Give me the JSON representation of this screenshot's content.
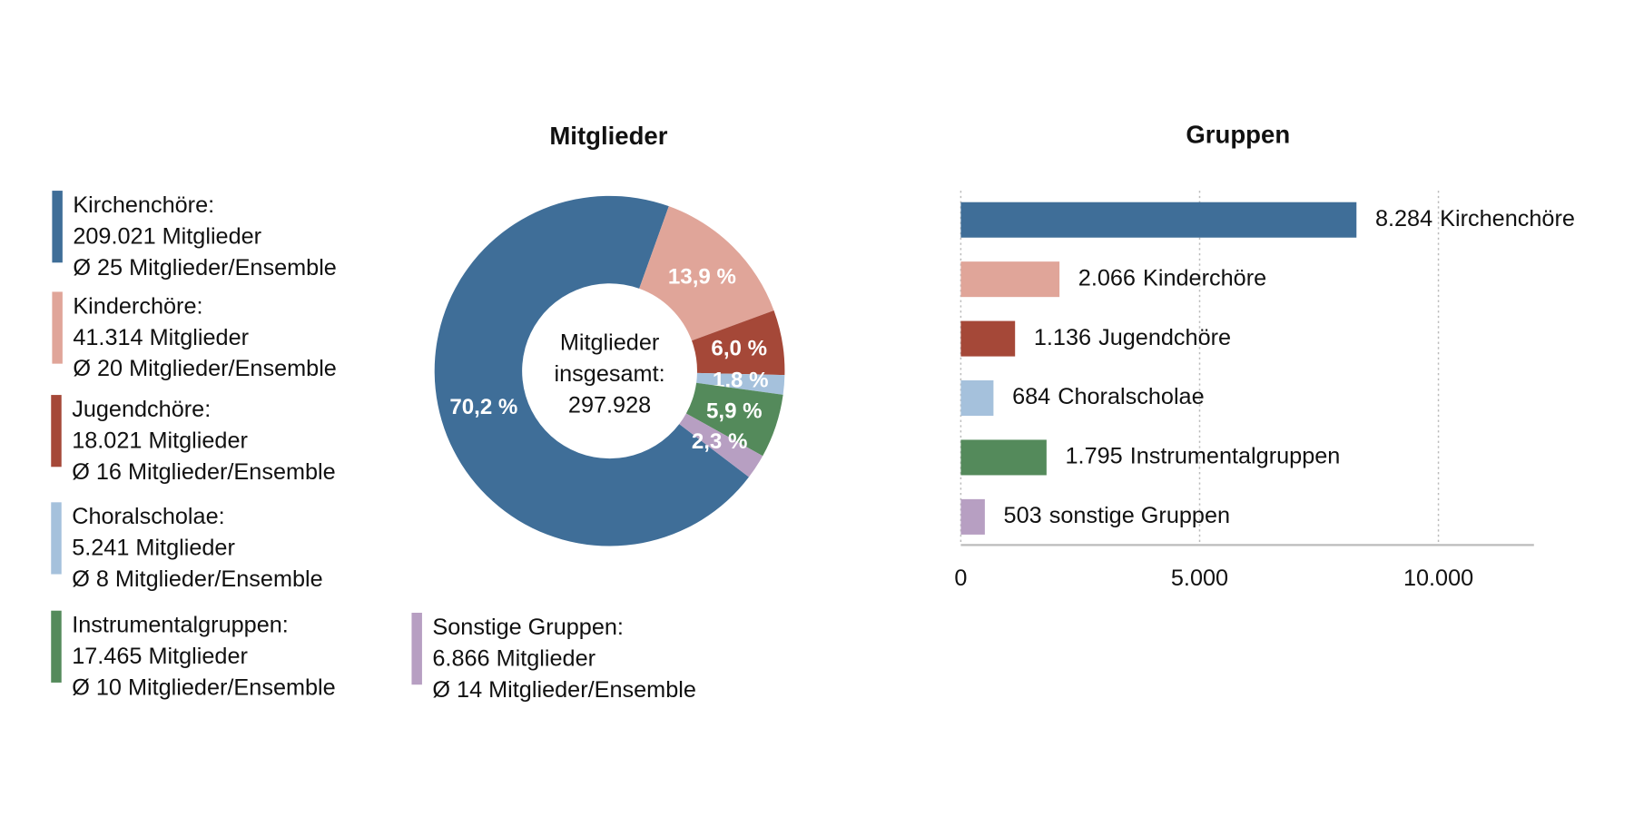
{
  "chart_data": [
    {
      "type": "donut",
      "title": "Mitglieder",
      "center_text": [
        "Mitglieder",
        "insgesamt:",
        "297.928"
      ],
      "categories": [
        "Kirchenchöre:",
        "Kinderchöre:",
        "Jugendchöre:",
        "Choralscholae:",
        "Instrumentalgruppen:",
        "Sonstige Gruppen:"
      ],
      "values": [
        70.2,
        13.9,
        6.0,
        1.8,
        5.9,
        2.3
      ],
      "value_labels": [
        "70,2 %",
        "13,9 %",
        "6,0 %",
        "1,8 %",
        "5,9 %",
        "2,3 %"
      ],
      "colors": [
        "#3f6e98",
        "#e0a599",
        "#a54838",
        "#a5c1dc",
        "#548a5b",
        "#b79fc2"
      ],
      "legend_details": [
        [
          "209.021 Mitglieder",
          "Ø 25 Mitglieder/Ensemble"
        ],
        [
          "41.314 Mitglieder",
          "Ø 20 Mitglieder/Ensemble"
        ],
        [
          "18.021 Mitglieder",
          "Ø 16 Mitglieder/Ensemble"
        ],
        [
          "5.241 Mitglieder",
          "Ø 8 Mitglieder/Ensemble"
        ],
        [
          "17.465 Mitglieder",
          "Ø 10 Mitglieder/Ensemble"
        ],
        [
          "6.866 Mitglieder",
          "Ø 14 Mitglieder/Ensemble"
        ]
      ]
    },
    {
      "type": "hbar",
      "title": "Gruppen",
      "categories": [
        "Kirchenchöre",
        "Kinderchöre",
        "Jugendchöre",
        "Choralscholae",
        "Instrumentalgruppen",
        "sonstige Gruppen"
      ],
      "values": [
        8284,
        2066,
        1136,
        684,
        1795,
        503
      ],
      "value_labels": [
        "8.284",
        "2.066",
        "1.136",
        "684",
        "1.795",
        "503"
      ],
      "colors": [
        "#3f6e98",
        "#e0a599",
        "#a54838",
        "#a5c1dc",
        "#548a5b",
        "#b79fc2"
      ],
      "xlim": [
        0,
        12000
      ],
      "xticks": [
        0,
        {
          "value": 5000,
          "label": "5.000"
        },
        {
          "value": 10000,
          "label": "10.000"
        }
      ],
      "grid": true
    }
  ]
}
